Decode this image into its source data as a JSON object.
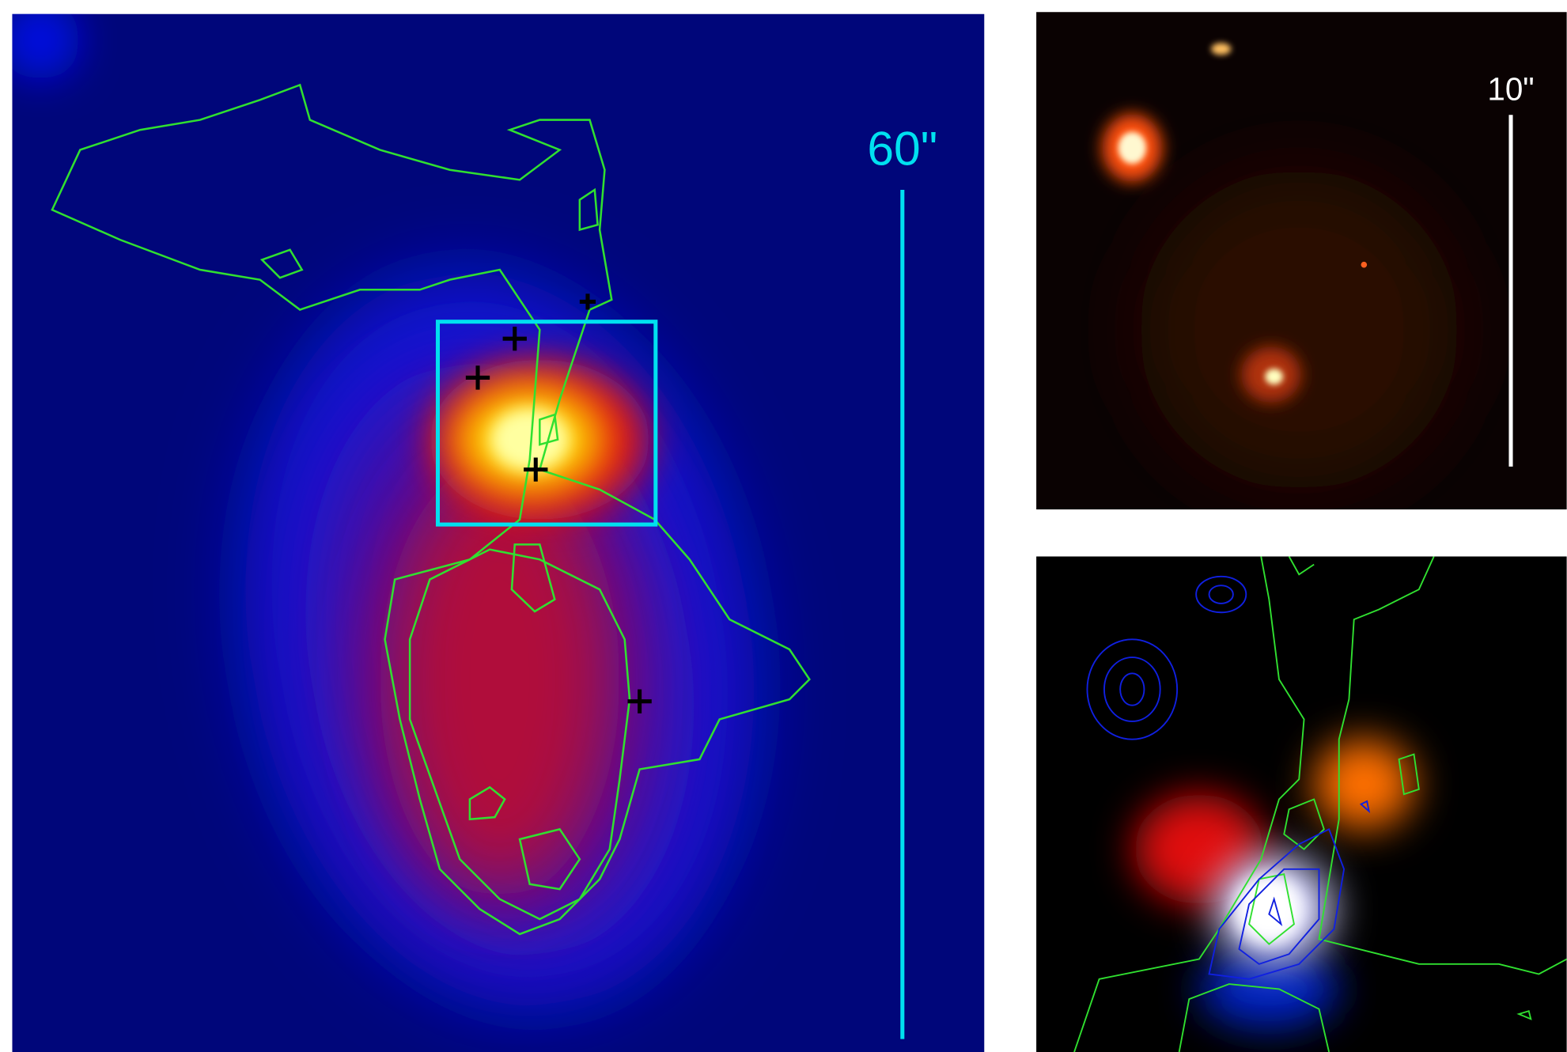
{
  "left_panel": {
    "scale_label": "60\""
  },
  "top_right_panel": {
    "scale_label": "10\""
  }
}
